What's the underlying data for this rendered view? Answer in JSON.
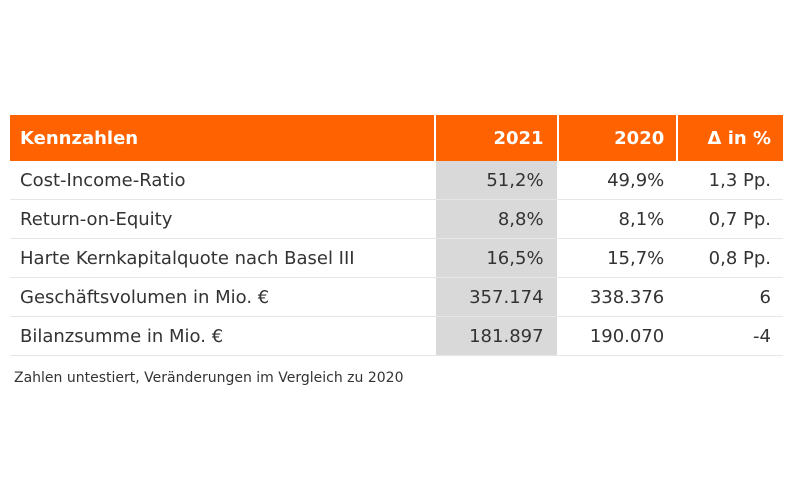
{
  "table": {
    "headers": [
      "Kennzahlen",
      "2021",
      "2020",
      "Δ in %"
    ],
    "rows": [
      [
        "Cost-Income-Ratio",
        "51,2%",
        "49,9%",
        "1,3 Pp."
      ],
      [
        "Return-on-Equity",
        "8,8%",
        "8,1%",
        "0,7 Pp."
      ],
      [
        "Harte Kernkapitalquote nach Basel III",
        "16,5%",
        "15,7%",
        "0,8 Pp."
      ],
      [
        "Geschäftsvolumen in Mio. €",
        "357.174",
        "338.376",
        "6"
      ],
      [
        "Bilanzsumme in Mio. €",
        "181.897",
        "190.070",
        "-4"
      ]
    ]
  },
  "footnote": "Zahlen untestiert, Veränderungen im Vergleich zu 2020",
  "colors": {
    "header_bg": "#ff6200",
    "highlight_column_bg": "#d9d9d9"
  }
}
